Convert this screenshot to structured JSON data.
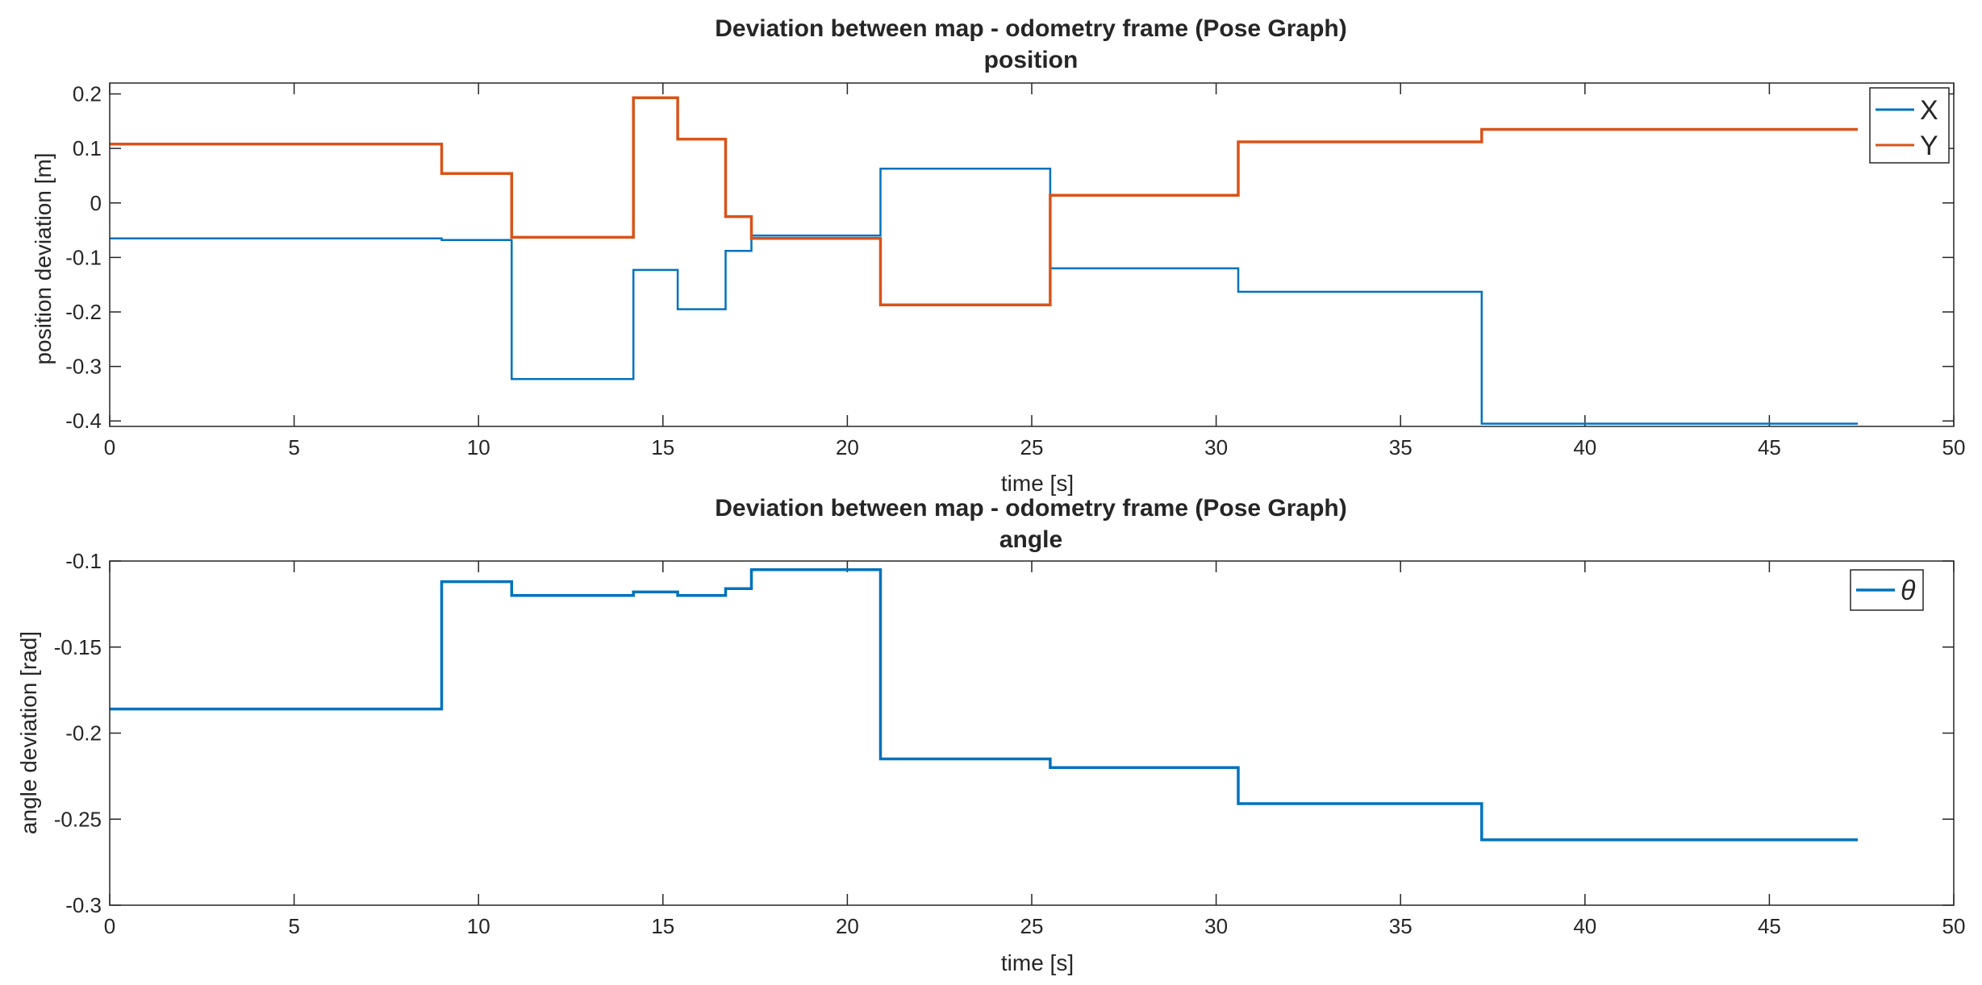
{
  "chart_data": [
    {
      "type": "line",
      "step": true,
      "title": "Deviation between map - odometry frame (Pose Graph)",
      "subtitle": "position",
      "xlabel": "time [s]",
      "ylabel": "position deviation [m]",
      "xlim": [
        0,
        50
      ],
      "ylim": [
        -0.41,
        0.22
      ],
      "xticks": [
        0,
        5,
        10,
        15,
        20,
        25,
        30,
        35,
        40,
        45,
        50
      ],
      "yticks": [
        -0.4,
        -0.3,
        -0.2,
        -0.1,
        0,
        0.1,
        0.2
      ],
      "xtick_labels": [
        "0",
        "5",
        "10",
        "15",
        "20",
        "25",
        "30",
        "35",
        "40",
        "45",
        "50"
      ],
      "ytick_labels": [
        "-0.4",
        "-0.3",
        "-0.2",
        "-0.1",
        "0",
        "0.1",
        "0.2"
      ],
      "grid": false,
      "legend_position": "top-right",
      "series": [
        {
          "name": "X",
          "color": "#0072BD",
          "x": [
            0,
            9.0,
            10.9,
            14.2,
            15.4,
            16.7,
            17.4,
            20.9,
            25.5,
            30.6,
            37.2,
            47.4
          ],
          "y": [
            -0.065,
            -0.068,
            -0.323,
            -0.123,
            -0.195,
            -0.088,
            -0.06,
            0.063,
            -0.12,
            -0.163,
            -0.405,
            -0.405
          ]
        },
        {
          "name": "Y",
          "color": "#D95319",
          "x": [
            0,
            9.0,
            10.9,
            14.2,
            15.4,
            16.7,
            17.4,
            20.9,
            25.5,
            30.6,
            37.2,
            47.4
          ],
          "y": [
            0.108,
            0.054,
            -0.063,
            0.193,
            0.117,
            -0.025,
            -0.065,
            -0.187,
            0.014,
            0.112,
            0.135,
            0.135
          ]
        }
      ]
    },
    {
      "type": "line",
      "step": true,
      "title": "Deviation between map - odometry frame (Pose Graph)",
      "subtitle": "angle",
      "xlabel": "time [s]",
      "ylabel": "angle deviation [rad]",
      "xlim": [
        0,
        50
      ],
      "ylim": [
        -0.3,
        -0.1
      ],
      "xticks": [
        0,
        5,
        10,
        15,
        20,
        25,
        30,
        35,
        40,
        45,
        50
      ],
      "yticks": [
        -0.3,
        -0.25,
        -0.2,
        -0.15,
        -0.1
      ],
      "xtick_labels": [
        "0",
        "5",
        "10",
        "15",
        "20",
        "25",
        "30",
        "35",
        "40",
        "45",
        "50"
      ],
      "ytick_labels": [
        "-0.3",
        "-0.25",
        "-0.2",
        "-0.15",
        "-0.1"
      ],
      "grid": false,
      "legend_position": "top-right",
      "series": [
        {
          "name": "θ",
          "color": "#0072BD",
          "x": [
            0,
            9.0,
            10.9,
            14.2,
            15.4,
            16.7,
            17.4,
            20.9,
            25.5,
            30.6,
            37.2,
            47.4
          ],
          "y": [
            -0.186,
            -0.112,
            -0.12,
            -0.118,
            -0.12,
            -0.116,
            -0.105,
            -0.215,
            -0.22,
            -0.241,
            -0.262,
            -0.262
          ]
        }
      ]
    }
  ]
}
